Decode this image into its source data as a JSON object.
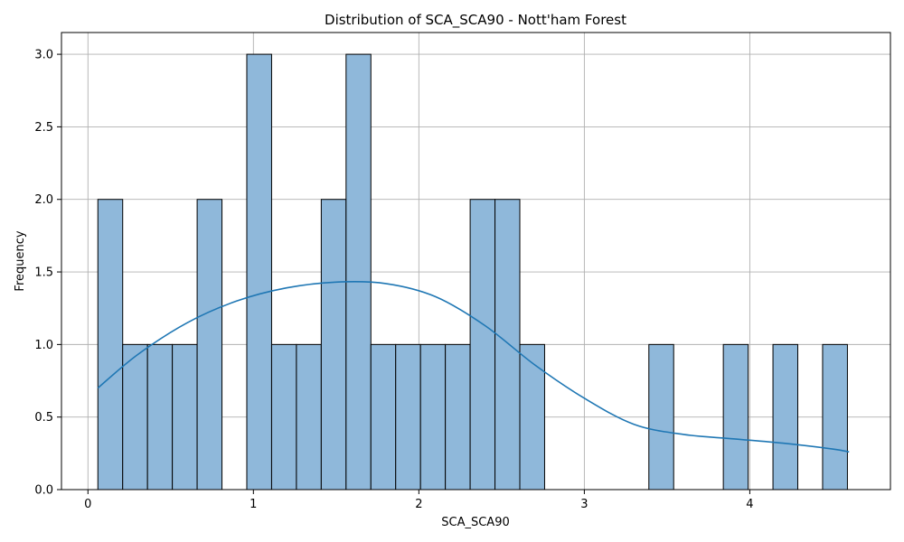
{
  "chart_data": {
    "type": "bar",
    "subtype": "histogram",
    "title": "Distribution of SCA_SCA90 - Nott'ham Forest",
    "xlabel": "SCA_SCA90",
    "ylabel": "Frequency",
    "xlim": [
      -0.16,
      4.85
    ],
    "ylim": [
      0,
      3.15
    ],
    "xticks": [
      0,
      1,
      2,
      3,
      4
    ],
    "yticks": [
      0.0,
      0.5,
      1.0,
      1.5,
      2.0,
      2.5,
      3.0
    ],
    "xtick_labels": [
      "0",
      "1",
      "2",
      "3",
      "4"
    ],
    "ytick_labels": [
      "0.0",
      "0.5",
      "1.0",
      "1.5",
      "2.0",
      "2.5",
      "3.0"
    ],
    "grid": true,
    "bins": [
      {
        "x0": 0.06,
        "x1": 0.21,
        "count": 2
      },
      {
        "x0": 0.21,
        "x1": 0.36,
        "count": 1
      },
      {
        "x0": 0.36,
        "x1": 0.51,
        "count": 1
      },
      {
        "x0": 0.51,
        "x1": 0.66,
        "count": 1
      },
      {
        "x0": 0.66,
        "x1": 0.81,
        "count": 2
      },
      {
        "x0": 0.96,
        "x1": 1.11,
        "count": 3
      },
      {
        "x0": 1.11,
        "x1": 1.26,
        "count": 1
      },
      {
        "x0": 1.26,
        "x1": 1.41,
        "count": 1
      },
      {
        "x0": 1.41,
        "x1": 1.56,
        "count": 2
      },
      {
        "x0": 1.56,
        "x1": 1.71,
        "count": 3
      },
      {
        "x0": 1.71,
        "x1": 1.86,
        "count": 1
      },
      {
        "x0": 1.86,
        "x1": 2.01,
        "count": 1
      },
      {
        "x0": 2.01,
        "x1": 2.16,
        "count": 1
      },
      {
        "x0": 2.16,
        "x1": 2.31,
        "count": 1
      },
      {
        "x0": 2.31,
        "x1": 2.46,
        "count": 2
      },
      {
        "x0": 2.46,
        "x1": 2.61,
        "count": 2
      },
      {
        "x0": 2.61,
        "x1": 2.76,
        "count": 1
      },
      {
        "x0": 3.39,
        "x1": 3.54,
        "count": 1
      },
      {
        "x0": 3.84,
        "x1": 3.99,
        "count": 1
      },
      {
        "x0": 4.14,
        "x1": 4.29,
        "count": 1
      },
      {
        "x0": 4.44,
        "x1": 4.59,
        "count": 1
      }
    ],
    "kde": {
      "x": [
        0.06,
        0.3,
        0.6,
        0.9,
        1.2,
        1.5,
        1.8,
        2.1,
        2.4,
        2.7,
        3.0,
        3.3,
        3.6,
        3.9,
        4.2,
        4.5,
        4.6
      ],
      "y": [
        0.7,
        0.93,
        1.15,
        1.3,
        1.39,
        1.43,
        1.42,
        1.33,
        1.13,
        0.86,
        0.63,
        0.45,
        0.38,
        0.35,
        0.32,
        0.28,
        0.26
      ]
    },
    "colors": {
      "bar_fill": "#8fb8da",
      "bar_edge": "#000000",
      "kde_line": "#1f77b4",
      "grid": "#b0b0b0"
    }
  }
}
